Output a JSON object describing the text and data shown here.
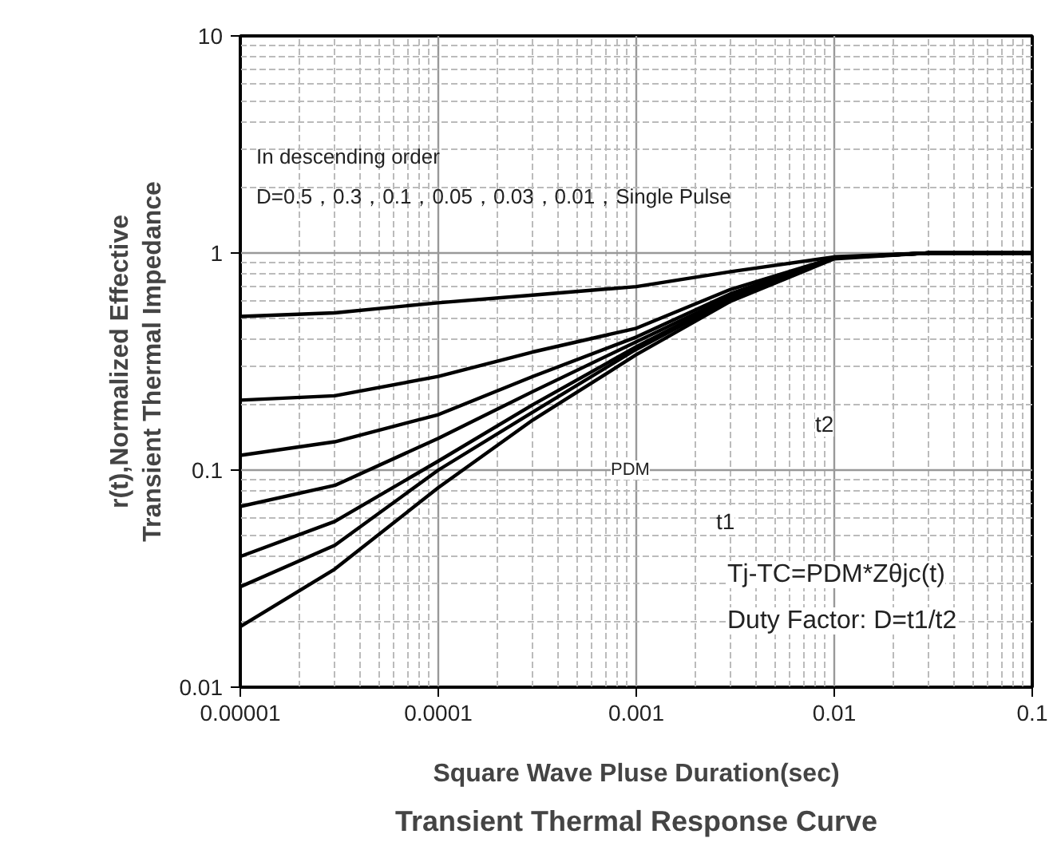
{
  "chart_data": {
    "type": "line",
    "title": "Transient Thermal Response Curve",
    "xlabel": "Square Wave Pluse Duration(sec)",
    "ylabel": "r(t),Normalized Effective\nTransient Thermal Impedance",
    "log": "xy",
    "grid": true,
    "marker": "none",
    "line_style": "solid",
    "xlim": [
      1e-05,
      0.1
    ],
    "ylim": [
      0.01,
      10
    ],
    "xticks": [
      {
        "value": 1e-05,
        "label": "0.00001"
      },
      {
        "value": 0.0001,
        "label": "0.0001"
      },
      {
        "value": 0.001,
        "label": "0.001"
      },
      {
        "value": 0.01,
        "label": "0.01"
      },
      {
        "value": 0.1,
        "label": "0.1"
      }
    ],
    "yticks": [
      {
        "value": 0.01,
        "label": "0.01"
      },
      {
        "value": 0.1,
        "label": "0.1"
      },
      {
        "value": 1,
        "label": "1"
      },
      {
        "value": 10,
        "label": "10"
      }
    ],
    "x": [
      1e-05,
      3e-05,
      0.0001,
      0.0003,
      0.001,
      0.003,
      0.01,
      0.03,
      0.1
    ],
    "series": [
      {
        "color": "#000000",
        "values": [
          0.51,
          0.53,
          0.59,
          0.64,
          0.7,
          0.82,
          0.96,
          1.0,
          1.0
        ]
      },
      {
        "color": "#000000",
        "values": [
          0.21,
          0.22,
          0.27,
          0.35,
          0.45,
          0.68,
          0.95,
          1.0,
          1.0
        ]
      },
      {
        "color": "#000000",
        "values": [
          0.117,
          0.135,
          0.18,
          0.27,
          0.41,
          0.65,
          0.95,
          1.0,
          1.0
        ]
      },
      {
        "color": "#000000",
        "values": [
          0.068,
          0.085,
          0.14,
          0.23,
          0.39,
          0.63,
          0.95,
          1.0,
          1.0
        ]
      },
      {
        "color": "#000000",
        "values": [
          0.04,
          0.058,
          0.11,
          0.2,
          0.37,
          0.62,
          0.95,
          1.0,
          1.0
        ]
      },
      {
        "color": "#000000",
        "values": [
          0.029,
          0.045,
          0.1,
          0.185,
          0.36,
          0.61,
          0.95,
          1.0,
          1.0
        ]
      },
      {
        "color": "#000000",
        "values": [
          0.019,
          0.035,
          0.083,
          0.17,
          0.34,
          0.6,
          0.94,
          1.0,
          1.0
        ]
      }
    ],
    "annotations": [
      "In descending order",
      "D=0.5，0.3，0.1，0.05，0.03，0.01，Single Pulse",
      "PDM",
      "t2",
      "t1",
      "Tj-TC=PDM*Zθjc(t)",
      "Duty Factor: D=t1/t2"
    ]
  }
}
